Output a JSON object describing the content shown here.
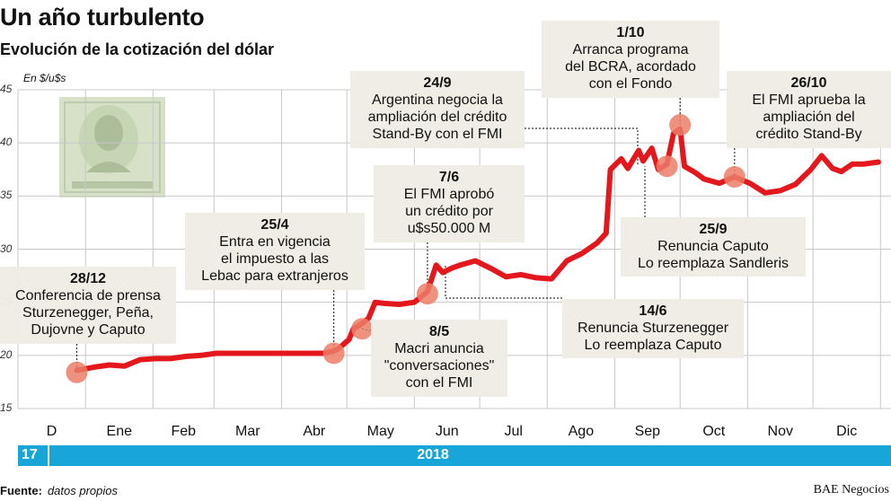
{
  "title": "Un año turbulento",
  "subtitle": "Evolución de la cotización del dólar",
  "unit": "En $/u$s",
  "year_labels": [
    "17",
    "2018"
  ],
  "source_label": "Fuente:",
  "source_text": "datos propios",
  "credit": "BAE Negocios",
  "illustration": "one-dollar-bill",
  "colors": {
    "line": "#e4181c",
    "marker": "#ec7e68",
    "grid": "#c8c8c8",
    "year_bar": "#18a5d8",
    "annotation_bg": "#eeece4"
  },
  "chart_data": {
    "type": "line",
    "ylim": [
      15,
      45
    ],
    "yticks": [
      15,
      20,
      25,
      30,
      35,
      40,
      45
    ],
    "xticks": [
      "D",
      "Ene",
      "Feb",
      "Mar",
      "Abr",
      "May",
      "Jun",
      "Jul",
      "Ago",
      "Sep",
      "Oct",
      "Nov",
      "Dic"
    ],
    "grid": true,
    "series": [
      {
        "points": [
          [
            "2017-12-28",
            18.6
          ],
          [
            "2018-01-05",
            18.9
          ],
          [
            "2018-01-12",
            19.1
          ],
          [
            "2018-01-19",
            19.0
          ],
          [
            "2018-01-26",
            19.6
          ],
          [
            "2018-02-02",
            19.7
          ],
          [
            "2018-02-09",
            19.7
          ],
          [
            "2018-02-16",
            19.9
          ],
          [
            "2018-02-23",
            20.0
          ],
          [
            "2018-03-02",
            20.2
          ],
          [
            "2018-03-09",
            20.2
          ],
          [
            "2018-03-16",
            20.2
          ],
          [
            "2018-03-23",
            20.2
          ],
          [
            "2018-03-30",
            20.2
          ],
          [
            "2018-04-06",
            20.2
          ],
          [
            "2018-04-13",
            20.2
          ],
          [
            "2018-04-20",
            20.2
          ],
          [
            "2018-04-25",
            20.4
          ],
          [
            "2018-04-27",
            20.6
          ],
          [
            "2018-05-02",
            21.5
          ],
          [
            "2018-05-04",
            22.5
          ],
          [
            "2018-05-08",
            23.0
          ],
          [
            "2018-05-11",
            23.5
          ],
          [
            "2018-05-14",
            25.0
          ],
          [
            "2018-05-18",
            24.9
          ],
          [
            "2018-05-25",
            24.8
          ],
          [
            "2018-06-01",
            25.0
          ],
          [
            "2018-06-07",
            26.0
          ],
          [
            "2018-06-11",
            28.5
          ],
          [
            "2018-06-14",
            27.8
          ],
          [
            "2018-06-18",
            28.2
          ],
          [
            "2018-06-22",
            28.5
          ],
          [
            "2018-06-29",
            28.9
          ],
          [
            "2018-07-06",
            28.2
          ],
          [
            "2018-07-13",
            27.4
          ],
          [
            "2018-07-20",
            27.6
          ],
          [
            "2018-07-27",
            27.3
          ],
          [
            "2018-08-03",
            27.2
          ],
          [
            "2018-08-10",
            28.9
          ],
          [
            "2018-08-17",
            29.6
          ],
          [
            "2018-08-24",
            30.6
          ],
          [
            "2018-08-28",
            31.5
          ],
          [
            "2018-08-30",
            37.5
          ],
          [
            "2018-09-04",
            38.5
          ],
          [
            "2018-09-07",
            37.6
          ],
          [
            "2018-09-12",
            39.3
          ],
          [
            "2018-09-14",
            38.3
          ],
          [
            "2018-09-18",
            39.5
          ],
          [
            "2018-09-21",
            37.5
          ],
          [
            "2018-09-25",
            38.0
          ],
          [
            "2018-09-28",
            40.9
          ],
          [
            "2018-10-01",
            41.3
          ],
          [
            "2018-10-03",
            37.8
          ],
          [
            "2018-10-08",
            37.2
          ],
          [
            "2018-10-12",
            36.6
          ],
          [
            "2018-10-19",
            36.2
          ],
          [
            "2018-10-26",
            36.8
          ],
          [
            "2018-11-02",
            36.2
          ],
          [
            "2018-11-09",
            35.3
          ],
          [
            "2018-11-16",
            35.5
          ],
          [
            "2018-11-23",
            36.1
          ],
          [
            "2018-11-30",
            37.5
          ],
          [
            "2018-12-05",
            38.8
          ],
          [
            "2018-12-10",
            37.6
          ],
          [
            "2018-12-14",
            37.3
          ],
          [
            "2018-12-19",
            38.0
          ],
          [
            "2018-12-24",
            38.0
          ],
          [
            "2018-12-31",
            38.2
          ]
        ]
      }
    ],
    "annotations": [
      {
        "date": "28/12",
        "text": "Conferencia de prensa\nSturzenegger, Peña,\nDujovne y Caputo",
        "x": "2017-12-28",
        "y": 18.4
      },
      {
        "date": "25/4",
        "text": "Entra en vigencia\nel impuesto a las\nLebac para extranjeros",
        "x": "2018-04-25",
        "y": 20.2
      },
      {
        "date": "8/5",
        "text": "Macri anuncia\n\"conversaciones\"\ncon el FMI",
        "x": "2018-05-08",
        "y": 22.5
      },
      {
        "date": "7/6",
        "text": "El FMI aprobó\nun crédito por\nu$s50.000 M",
        "x": "2018-06-07",
        "y": 25.8
      },
      {
        "date": "14/6",
        "text": "Renuncia Sturzenegger\nLo reemplaza Caputo",
        "x": "2018-06-14",
        "y": 28.5
      },
      {
        "date": "24/9",
        "text": "Argentina negocia la\nampliación del crédito\nStand-By con el FMI",
        "x": "2018-09-24",
        "y": 37.9
      },
      {
        "date": "25/9",
        "text": "Renuncia Caputo\nLo reemplaza Sandleris",
        "x": "2018-09-25",
        "y": 37.8
      },
      {
        "date": "1/10",
        "text": "Arranca programa\ndel BCRA, acordado\ncon el Fondo",
        "x": "2018-10-01",
        "y": 41.7
      },
      {
        "date": "26/10",
        "text": "El FMI aprueba la\nampliación del\ncrédito Stand-By",
        "x": "2018-10-26",
        "y": 36.8
      }
    ]
  }
}
